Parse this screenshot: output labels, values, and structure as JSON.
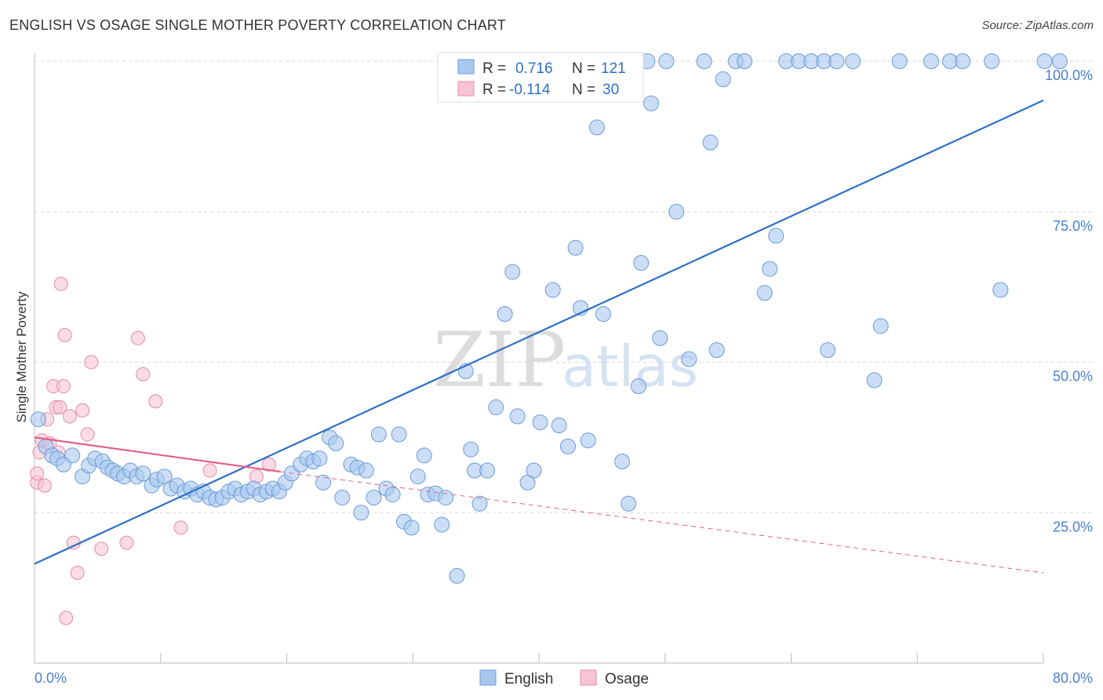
{
  "header": {
    "title": "ENGLISH VS OSAGE SINGLE MOTHER POVERTY CORRELATION CHART",
    "source": "Source: ZipAtlas.com"
  },
  "watermark": {
    "zip": "ZIP",
    "atlas": "atlas"
  },
  "colors": {
    "english_fill": "#a9c8ee",
    "english_stroke": "#6b9bd8",
    "english_line": "#2e6fc8",
    "osage_fill": "#f7c4d4",
    "osage_stroke": "#e88aa8",
    "osage_line": "#e0608a",
    "grid": "#d8d8d8",
    "tick_label": "#4a80d0"
  },
  "legend": {
    "rows": [
      {
        "r_label": "R =",
        "r_value": "0.716",
        "n_label": "N =",
        "n_value": "121"
      },
      {
        "r_label": "R =",
        "r_value": "-0.114",
        "n_label": "N =",
        "n_value": "30"
      }
    ]
  },
  "chart_data": {
    "type": "scatter",
    "title": "ENGLISH VS OSAGE SINGLE MOTHER POVERTY CORRELATION CHART",
    "xlabel": "",
    "ylabel": "Single Mother Poverty",
    "xlim": [
      0,
      80
    ],
    "ylim": [
      0,
      100
    ],
    "x_tick_labels": [
      "0.0%",
      "80.0%"
    ],
    "y_tick_labels": [
      "25.0%",
      "50.0%",
      "75.0%",
      "100.0%"
    ],
    "y_ticks": [
      25,
      50,
      75,
      100
    ],
    "series": [
      {
        "name": "English",
        "r": 0.716,
        "n": 121,
        "trend": {
          "x0": 0,
          "y0": 16.5,
          "x1": 80,
          "y1": 93.5
        },
        "points": [
          [
            0.3,
            40.5
          ],
          [
            0.9,
            36
          ],
          [
            1.4,
            34.5
          ],
          [
            1.8,
            34
          ],
          [
            2.3,
            33
          ],
          [
            3,
            34.5
          ],
          [
            3.8,
            31
          ],
          [
            4.3,
            32.8
          ],
          [
            4.8,
            34
          ],
          [
            5.4,
            33.5
          ],
          [
            5.8,
            32.5
          ],
          [
            6.2,
            32
          ],
          [
            6.6,
            31.5
          ],
          [
            7.1,
            31
          ],
          [
            7.6,
            32
          ],
          [
            8.1,
            31
          ],
          [
            8.6,
            31.5
          ],
          [
            9.3,
            29.5
          ],
          [
            9.7,
            30.5
          ],
          [
            10.3,
            31
          ],
          [
            10.8,
            29
          ],
          [
            11.3,
            29.5
          ],
          [
            11.9,
            28.5
          ],
          [
            12.4,
            29
          ],
          [
            12.9,
            28
          ],
          [
            13.4,
            28.5
          ],
          [
            13.9,
            27.5
          ],
          [
            14.4,
            27.2
          ],
          [
            14.9,
            27.5
          ],
          [
            15.4,
            28.5
          ],
          [
            15.9,
            29
          ],
          [
            16.4,
            28
          ],
          [
            16.9,
            28.5
          ],
          [
            17.4,
            29
          ],
          [
            17.9,
            28
          ],
          [
            18.4,
            28.5
          ],
          [
            18.9,
            29
          ],
          [
            19.4,
            28.5
          ],
          [
            19.9,
            30
          ],
          [
            20.4,
            31.5
          ],
          [
            21.1,
            33
          ],
          [
            21.6,
            34
          ],
          [
            22.1,
            33.5
          ],
          [
            22.6,
            34
          ],
          [
            22.9,
            30
          ],
          [
            23.4,
            37.5
          ],
          [
            23.9,
            36.5
          ],
          [
            24.4,
            27.5
          ],
          [
            25.1,
            33
          ],
          [
            25.6,
            32.5
          ],
          [
            25.9,
            25
          ],
          [
            26.3,
            32
          ],
          [
            26.9,
            27.5
          ],
          [
            27.3,
            38
          ],
          [
            27.9,
            29
          ],
          [
            28.4,
            28
          ],
          [
            28.9,
            38
          ],
          [
            29.3,
            23.5
          ],
          [
            29.9,
            22.5
          ],
          [
            30.4,
            31
          ],
          [
            30.9,
            34.5
          ],
          [
            31.2,
            28
          ],
          [
            31.8,
            28.2
          ],
          [
            32.3,
            23
          ],
          [
            32.6,
            27.5
          ],
          [
            33.5,
            14.5
          ],
          [
            34.2,
            48.5
          ],
          [
            34.6,
            35.5
          ],
          [
            34.9,
            32
          ],
          [
            35.3,
            26.5
          ],
          [
            35.9,
            32
          ],
          [
            36.6,
            42.5
          ],
          [
            37.3,
            58
          ],
          [
            37.9,
            65
          ],
          [
            38.3,
            41
          ],
          [
            39.1,
            30
          ],
          [
            39.6,
            32
          ],
          [
            40.1,
            40
          ],
          [
            41.1,
            62
          ],
          [
            41.6,
            39.5
          ],
          [
            42.3,
            36
          ],
          [
            42.9,
            69
          ],
          [
            43.3,
            59
          ],
          [
            43.9,
            37
          ],
          [
            44.1,
            100
          ],
          [
            44.9,
            100
          ],
          [
            44.6,
            89
          ],
          [
            45.1,
            58
          ],
          [
            46.1,
            100
          ],
          [
            46.6,
            33.5
          ],
          [
            47.1,
            26.5
          ],
          [
            47.9,
            46
          ],
          [
            48.6,
            100
          ],
          [
            48.1,
            66.5
          ],
          [
            48.9,
            93
          ],
          [
            49.6,
            54
          ],
          [
            50.1,
            100
          ],
          [
            50.9,
            75
          ],
          [
            51.9,
            50.5
          ],
          [
            53.1,
            100
          ],
          [
            53.6,
            86.5
          ],
          [
            54.1,
            52
          ],
          [
            54.6,
            97
          ],
          [
            55.6,
            100
          ],
          [
            56.3,
            100
          ],
          [
            57.9,
            61.5
          ],
          [
            58.3,
            65.5
          ],
          [
            58.8,
            71
          ],
          [
            59.6,
            100
          ],
          [
            60.6,
            100
          ],
          [
            61.6,
            100
          ],
          [
            62.6,
            100
          ],
          [
            62.9,
            52
          ],
          [
            63.6,
            100
          ],
          [
            64.9,
            100
          ],
          [
            66.6,
            47
          ],
          [
            67.1,
            56
          ],
          [
            68.6,
            100
          ],
          [
            71.1,
            100
          ],
          [
            72.6,
            100
          ],
          [
            73.6,
            100
          ],
          [
            75.9,
            100
          ],
          [
            76.6,
            62
          ],
          [
            80.1,
            100
          ],
          [
            81.3,
            100
          ]
        ]
      },
      {
        "name": "Osage",
        "r": -0.114,
        "n": 30,
        "trend": {
          "x0": 0,
          "y0": 37.5,
          "x1": 19.5,
          "y1": 31.8,
          "dash_x1": 80,
          "dash_y1": 15
        },
        "points": [
          [
            0.2,
            30
          ],
          [
            0.2,
            31.5
          ],
          [
            0.4,
            35
          ],
          [
            0.6,
            37
          ],
          [
            0.8,
            29.5
          ],
          [
            1,
            40.5
          ],
          [
            1.2,
            36.5
          ],
          [
            1.5,
            46
          ],
          [
            1.7,
            42.5
          ],
          [
            1.9,
            35
          ],
          [
            2,
            42.5
          ],
          [
            2.1,
            63
          ],
          [
            2.3,
            46
          ],
          [
            2.4,
            54.5
          ],
          [
            2.5,
            7.5
          ],
          [
            2.8,
            41
          ],
          [
            3.1,
            20
          ],
          [
            3.4,
            15
          ],
          [
            3.8,
            42
          ],
          [
            4.2,
            38
          ],
          [
            4.5,
            50
          ],
          [
            5.3,
            19
          ],
          [
            7.3,
            20
          ],
          [
            8.2,
            54
          ],
          [
            8.6,
            48
          ],
          [
            9.6,
            43.5
          ],
          [
            11.6,
            22.5
          ],
          [
            13.9,
            32
          ],
          [
            17.6,
            31
          ],
          [
            18.6,
            33
          ]
        ]
      }
    ]
  }
}
